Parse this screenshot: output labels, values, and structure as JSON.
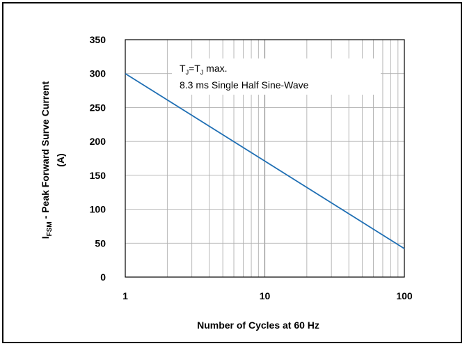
{
  "chart_data": {
    "type": "line",
    "xscale": "log",
    "xlim": [
      1,
      100
    ],
    "ylim": [
      0,
      350
    ],
    "xticks": [
      "1",
      "10",
      "100"
    ],
    "yticks": [
      "0",
      "50",
      "100",
      "150",
      "200",
      "250",
      "300",
      "350"
    ],
    "xlabel": "Number of Cycles at 60 Hz",
    "ylabel": {
      "main_prefix": "I",
      "main_sub": "FSM",
      "main_rest": " - Peak Forward Surve Current",
      "unit": "(A)"
    },
    "annotation": {
      "line1_t1": "T",
      "line1_sub1": "J",
      "line1_eq": "=T",
      "line1_sub2": "J",
      "line1_rest": " max.",
      "line2": "8.3 ms Single Half Sine-Wave"
    },
    "grid": true,
    "series": [
      {
        "x": [
          1,
          100
        ],
        "y": [
          300,
          42
        ]
      }
    ],
    "line_color": "#1f6fb4"
  }
}
